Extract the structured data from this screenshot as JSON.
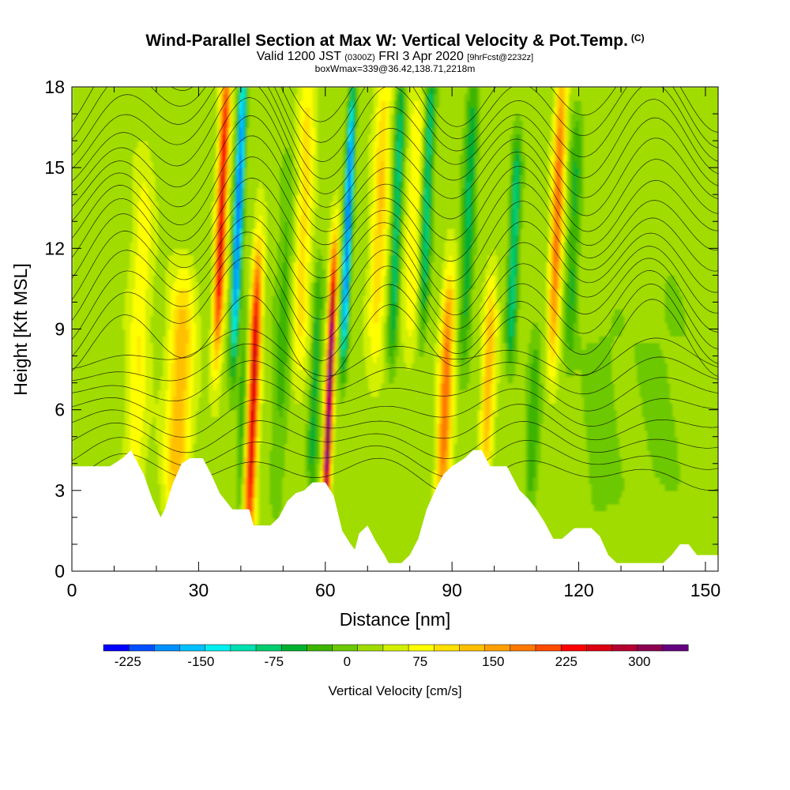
{
  "header": {
    "title": "Wind-Parallel Section at Max W: Vertical Velocity & Pot.Temp.",
    "copyright": "(C)",
    "valid_main": "Valid 1200 JST",
    "valid_z": "(0300Z)",
    "valid_date": "FRI 3 Apr 2020",
    "fcst": "[9hrFcst@2232z]",
    "box_info": "boxWmax=339@36.42,138.71,2218m"
  },
  "chart_data": {
    "type": "heatmap",
    "xlabel": "Distance [nm]",
    "ylabel": "Height [Kft MSL]",
    "xlim": [
      0,
      153
    ],
    "ylim": [
      0,
      18
    ],
    "x_ticks": [
      0,
      30,
      60,
      90,
      120,
      150
    ],
    "y_ticks": [
      0,
      3,
      6,
      9,
      12,
      15,
      18
    ],
    "colorbar": {
      "label": "Vertical Velocity [cm/s]",
      "tick_values": [
        -225,
        -150,
        -75,
        0,
        75,
        150,
        225,
        300
      ],
      "tick_labels": [
        "-225",
        "-150",
        "-75",
        "0",
        "75",
        "150",
        "225",
        "300"
      ],
      "min": -250,
      "max": 350,
      "colors": [
        "#0000ff",
        "#0050ff",
        "#0090ff",
        "#00c0ff",
        "#00f0f0",
        "#00e0b0",
        "#00cc70",
        "#00b030",
        "#3cb400",
        "#6cc800",
        "#a0dc00",
        "#d2f000",
        "#ffff00",
        "#ffe000",
        "#ffc000",
        "#ffa000",
        "#ff7800",
        "#ff4b00",
        "#ff0000",
        "#dc0010",
        "#b40030",
        "#8c0050",
        "#640080"
      ]
    },
    "w_extremes": [
      {
        "x": 34.5,
        "w": 230,
        "note": "updraft"
      },
      {
        "x": 38.5,
        "w": -230,
        "note": "downdraft"
      },
      {
        "x": 43.5,
        "w": 260,
        "note": "updraft"
      },
      {
        "x": 61.5,
        "w": 339,
        "note": "max updraft"
      },
      {
        "x": 64.5,
        "w": -230,
        "note": "downdraft"
      },
      {
        "x": 89,
        "w": 160,
        "note": "updraft"
      },
      {
        "x": 114,
        "w": 160,
        "note": "updraft"
      }
    ],
    "terrain_kft": [
      [
        0,
        3.9
      ],
      [
        9,
        3.9
      ],
      [
        12,
        4.2
      ],
      [
        14,
        4.5
      ],
      [
        15,
        4.2
      ],
      [
        17,
        3.6
      ],
      [
        19,
        2.7
      ],
      [
        21,
        2.0
      ],
      [
        22,
        2.3
      ],
      [
        24,
        3.3
      ],
      [
        26,
        4.0
      ],
      [
        28,
        4.2
      ],
      [
        31,
        4.2
      ],
      [
        33,
        3.6
      ],
      [
        35,
        2.9
      ],
      [
        36.5,
        2.6
      ],
      [
        38,
        2.3
      ],
      [
        42,
        2.3
      ],
      [
        43,
        1.7
      ],
      [
        47,
        1.7
      ],
      [
        49,
        2.0
      ],
      [
        51,
        2.6
      ],
      [
        53,
        2.9
      ],
      [
        55,
        3.0
      ],
      [
        57,
        3.3
      ],
      [
        60,
        3.3
      ],
      [
        62,
        2.8
      ],
      [
        64,
        1.5
      ],
      [
        66,
        1.0
      ],
      [
        67,
        0.8
      ],
      [
        68,
        1.4
      ],
      [
        70,
        1.7
      ],
      [
        72,
        1.1
      ],
      [
        74,
        0.6
      ],
      [
        75,
        0.3
      ],
      [
        78,
        0.3
      ],
      [
        80,
        0.6
      ],
      [
        82,
        1.2
      ],
      [
        84,
        2.3
      ],
      [
        86,
        3.0
      ],
      [
        88,
        3.6
      ],
      [
        90,
        3.9
      ],
      [
        93,
        4.2
      ],
      [
        95,
        4.5
      ],
      [
        97,
        4.5
      ],
      [
        99,
        3.9
      ],
      [
        103,
        3.9
      ],
      [
        106,
        3.0
      ],
      [
        108,
        2.7
      ],
      [
        110,
        2.3
      ],
      [
        112,
        1.8
      ],
      [
        114,
        1.2
      ],
      [
        116,
        1.2
      ],
      [
        119,
        1.6
      ],
      [
        123,
        1.6
      ],
      [
        125,
        1.3
      ],
      [
        127,
        0.6
      ],
      [
        129,
        0.3
      ],
      [
        140,
        0.3
      ],
      [
        142,
        0.6
      ],
      [
        144,
        1.0
      ],
      [
        146,
        1.0
      ],
      [
        148,
        0.6
      ],
      [
        153,
        0.6
      ]
    ]
  }
}
